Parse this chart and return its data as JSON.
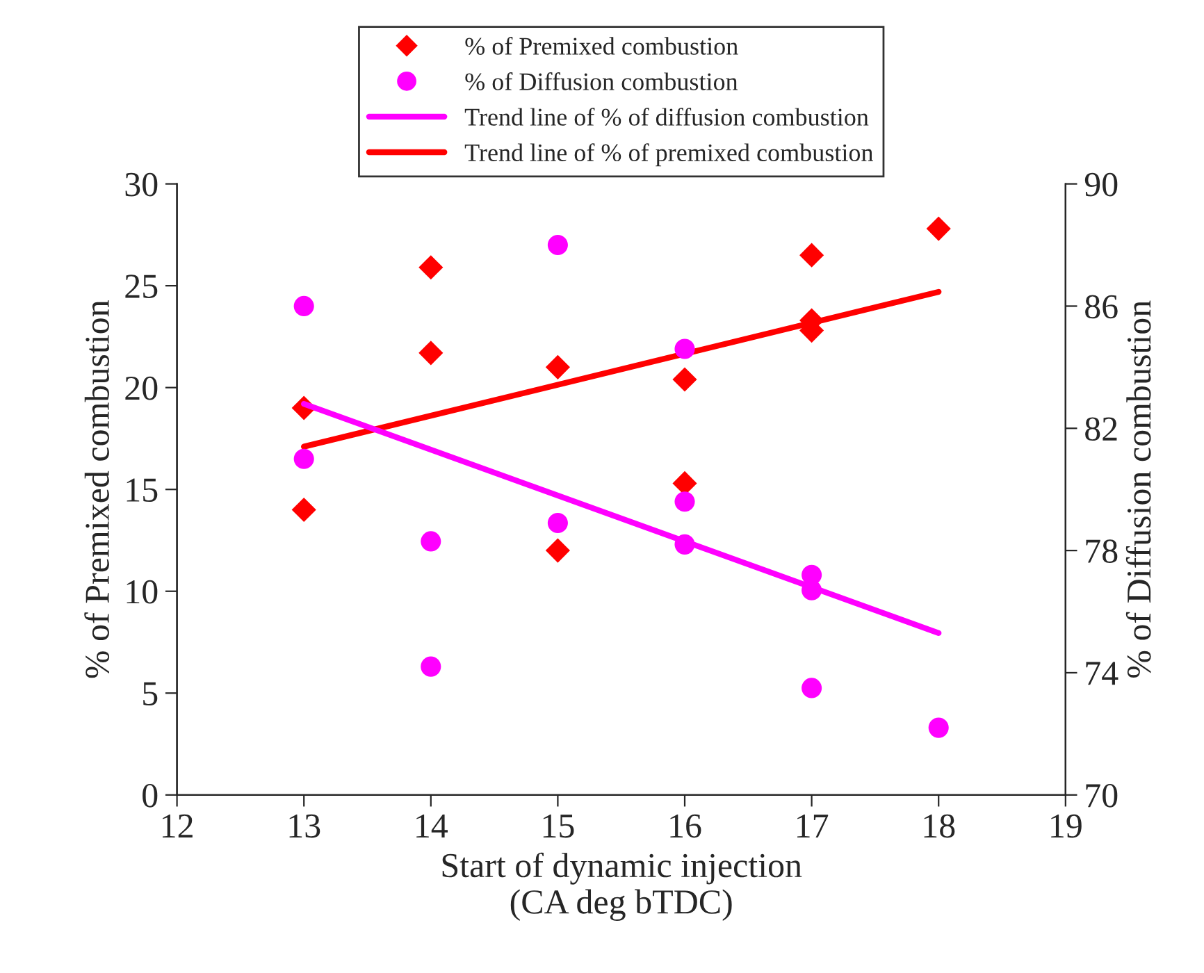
{
  "chart_data": {
    "type": "scatter",
    "xlabel": "Start of dynamic injection\n(CA deg bTDC)",
    "ylabel": "% of Premixed combustion",
    "y2label": "% of Diffusion combustion",
    "xlim": [
      12,
      19
    ],
    "xticks": [
      12,
      13,
      14,
      15,
      16,
      17,
      18,
      19
    ],
    "ylim": [
      0,
      30
    ],
    "yticks": [
      0,
      5,
      10,
      15,
      20,
      25,
      30
    ],
    "y2lim": [
      70,
      90
    ],
    "y2ticks": [
      70,
      74,
      78,
      82,
      86,
      90
    ],
    "grid": false,
    "legend": "top",
    "series": [
      {
        "name": "% of Premixed combustion",
        "marker": "diamond",
        "color": "#ff0000",
        "x": [
          13,
          13,
          14,
          14,
          15,
          15,
          16,
          16,
          17,
          17,
          17,
          18
        ],
        "values": [
          19,
          14,
          25.9,
          21.7,
          21,
          12,
          20.4,
          15.3,
          26.5,
          23.3,
          22.8,
          27.8
        ]
      },
      {
        "name": "% of Diffusion combustion",
        "marker": "circle",
        "axis": "y2",
        "color": "#ff00ff",
        "x": [
          13,
          13,
          14,
          14,
          15,
          15,
          16,
          16,
          16,
          17,
          17,
          17,
          18
        ],
        "values": [
          86,
          81,
          78.3,
          74.2,
          88,
          78.9,
          84.6,
          79.6,
          78.2,
          77.2,
          76.7,
          73.5,
          72.2
        ]
      },
      {
        "name": "Trend line of % of diffusion combustion",
        "type": "line",
        "marker": "none",
        "axis": "y2",
        "color": "#ff00ff",
        "x": [
          13,
          18
        ],
        "values": [
          82.8,
          75.3
        ]
      },
      {
        "name": "Trend line of % of premixed combustion",
        "type": "line",
        "marker": "none",
        "color": "#ff0000",
        "x": [
          13,
          18
        ],
        "values": [
          17.1,
          24.7
        ]
      }
    ]
  }
}
